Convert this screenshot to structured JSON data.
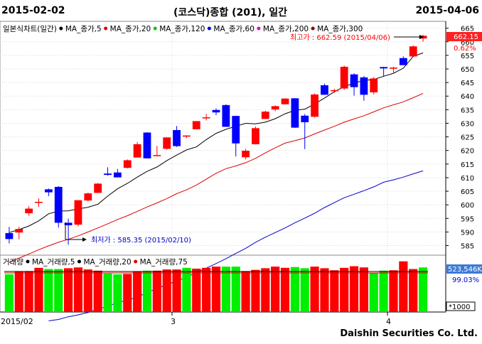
{
  "header": {
    "start_date": "2015-02-02",
    "title": "(코스닥)종합 (201), 일간",
    "end_date": "2015-04-06"
  },
  "price_panel": {
    "legend": [
      {
        "label": "일본식차트(일간)",
        "color": "#000000"
      },
      {
        "label": "MA_종가,5",
        "color": "#000000"
      },
      {
        "label": "MA_종가,20",
        "color": "#dd0000"
      },
      {
        "label": "MA_종가,120",
        "color": "#00cc00"
      },
      {
        "label": "MA_종가,60",
        "color": "#0000cc"
      },
      {
        "label": "MA_종가,200",
        "color": "#dd00dd"
      },
      {
        "label": "MA_종가,300",
        "color": "#8b0000"
      }
    ],
    "high_label": "최고가 : 662.59 (2015/04/06)",
    "low_label": "최저가 : 585.35 (2015/02/10)",
    "last_price": "662.15",
    "change_pct": "0.62%",
    "yticks": [
      "665",
      "660",
      "655",
      "650",
      "645",
      "640",
      "635",
      "630",
      "625",
      "620",
      "615",
      "610",
      "605",
      "600",
      "595",
      "590",
      "585"
    ]
  },
  "volume_panel": {
    "legend": [
      {
        "label": "거래량",
        "color": "#000000"
      },
      {
        "label": "MA_거래량,5",
        "color": "#000000"
      },
      {
        "label": "MA_거래량,20",
        "color": "#000000"
      },
      {
        "label": "MA_거래량,75",
        "color": "#dd0000"
      }
    ],
    "last_volume": "523,546K",
    "ratio": "99.03%",
    "unit": "*1000"
  },
  "xaxis": {
    "labels": [
      "2015/02",
      "3",
      "4"
    ]
  },
  "footer": {
    "brand": "Daishin Securities Co. Ltd."
  },
  "colors": {
    "up": "#ff0000",
    "down": "#0000ff",
    "volume_up": "#ff0000",
    "volume_down": "#00ee00"
  },
  "chart_data": {
    "type": "candlestick",
    "ylim": [
      582,
      667
    ],
    "candles": [
      {
        "o": 589.6,
        "h": 591.9,
        "l": 585.8,
        "c": 587.4
      },
      {
        "o": 589.8,
        "h": 591.9,
        "l": 587.3,
        "c": 591.1
      },
      {
        "o": 596.9,
        "h": 599.5,
        "l": 596.0,
        "c": 598.6
      },
      {
        "o": 600.7,
        "h": 602.4,
        "l": 599.2,
        "c": 601.1
      },
      {
        "o": 605.7,
        "h": 606.0,
        "l": 603.2,
        "c": 604.6
      },
      {
        "o": 606.6,
        "h": 606.9,
        "l": 591.6,
        "c": 593.4
      },
      {
        "o": 593.4,
        "h": 594.9,
        "l": 585.3,
        "c": 592.5
      },
      {
        "o": 592.7,
        "h": 601.7,
        "l": 592.1,
        "c": 601.7
      },
      {
        "o": 601.6,
        "h": 604.5,
        "l": 601.3,
        "c": 604.2
      },
      {
        "o": 604.4,
        "h": 608.0,
        "l": 604.4,
        "c": 607.8
      },
      {
        "o": 611.5,
        "h": 613.8,
        "l": 610.7,
        "c": 611.0
      },
      {
        "o": 611.9,
        "h": 613.2,
        "l": 610.3,
        "c": 610.1
      },
      {
        "o": 613.6,
        "h": 616.7,
        "l": 613.4,
        "c": 616.4
      },
      {
        "o": 617.4,
        "h": 623.1,
        "l": 617.4,
        "c": 622.3
      },
      {
        "o": 626.6,
        "h": 626.7,
        "l": 617.1,
        "c": 617.1
      },
      {
        "o": 618.1,
        "h": 621.7,
        "l": 618.0,
        "c": 618.3
      },
      {
        "o": 620.6,
        "h": 624.8,
        "l": 620.3,
        "c": 624.8
      },
      {
        "o": 627.5,
        "h": 629.0,
        "l": 621.3,
        "c": 621.6
      },
      {
        "o": 625.2,
        "h": 625.6,
        "l": 624.5,
        "c": 625.5
      },
      {
        "o": 627.8,
        "h": 630.8,
        "l": 627.8,
        "c": 630.8
      },
      {
        "o": 632.1,
        "h": 633.4,
        "l": 631.1,
        "c": 632.2
      },
      {
        "o": 634.9,
        "h": 635.5,
        "l": 633.0,
        "c": 634.0
      },
      {
        "o": 636.7,
        "h": 637.0,
        "l": 628.7,
        "c": 628.7
      },
      {
        "o": 632.7,
        "h": 632.8,
        "l": 617.8,
        "c": 622.6
      },
      {
        "o": 617.5,
        "h": 620.6,
        "l": 616.7,
        "c": 619.9
      },
      {
        "o": 622.3,
        "h": 628.8,
        "l": 622.2,
        "c": 628.2
      },
      {
        "o": 631.6,
        "h": 634.6,
        "l": 631.6,
        "c": 634.3
      },
      {
        "o": 635.1,
        "h": 636.6,
        "l": 634.4,
        "c": 636.3
      },
      {
        "o": 637.0,
        "h": 639.2,
        "l": 636.9,
        "c": 639.1
      },
      {
        "o": 639.2,
        "h": 639.2,
        "l": 628.3,
        "c": 628.4
      },
      {
        "o": 632.8,
        "h": 633.4,
        "l": 620.5,
        "c": 630.4
      },
      {
        "o": 632.4,
        "h": 641.0,
        "l": 632.1,
        "c": 640.6
      },
      {
        "o": 644.0,
        "h": 644.6,
        "l": 640.5,
        "c": 640.5
      },
      {
        "o": 641.8,
        "h": 642.7,
        "l": 641.2,
        "c": 642.2
      },
      {
        "o": 642.8,
        "h": 651.2,
        "l": 642.3,
        "c": 650.8
      },
      {
        "o": 648.0,
        "h": 648.4,
        "l": 640.2,
        "c": 643.3
      },
      {
        "o": 646.9,
        "h": 647.4,
        "l": 638.3,
        "c": 640.5
      },
      {
        "o": 641.4,
        "h": 647.0,
        "l": 640.6,
        "c": 646.5
      },
      {
        "o": 650.7,
        "h": 650.8,
        "l": 647.2,
        "c": 650.2
      },
      {
        "o": 650.1,
        "h": 650.8,
        "l": 648.3,
        "c": 650.5
      },
      {
        "o": 654.0,
        "h": 654.6,
        "l": 651.4,
        "c": 651.4
      },
      {
        "o": 654.6,
        "h": 658.7,
        "l": 654.6,
        "c": 658.3
      },
      {
        "o": 661.2,
        "h": 662.6,
        "l": 660.0,
        "c": 662.2
      }
    ],
    "ma5": [
      589.8,
      590.9,
      592.2,
      594.1,
      596.7,
      597.7,
      597.8,
      598.5,
      599.1,
      600.2,
      603.2,
      605.9,
      607.9,
      610.2,
      612.3,
      613.9,
      616.3,
      618.3,
      620.2,
      621.3,
      624.0,
      626.3,
      627.8,
      628.9,
      630.0,
      629.8,
      630.4,
      631.7,
      633.5,
      634.8,
      635.2,
      637.1,
      639.3,
      641.6,
      643.5,
      644.8,
      645.8,
      646.1,
      647.3,
      648.4,
      650.3,
      654.6,
      655.9
    ],
    "ma20": [
      578.8,
      580.4,
      581.9,
      583.5,
      584.9,
      586.2,
      587.3,
      588.6,
      590.0,
      591.5,
      593.0,
      594.6,
      596.0,
      597.6,
      599.2,
      600.7,
      602.3,
      604.1,
      605.5,
      607.3,
      609.4,
      611.6,
      613.3,
      614.3,
      615.5,
      617.1,
      619.1,
      621.0,
      622.7,
      623.6,
      624.6,
      626.1,
      627.5,
      628.9,
      630.4,
      631.6,
      632.8,
      634.2,
      635.7,
      636.8,
      637.9,
      639.4,
      641.0
    ],
    "ma60": [
      557.3,
      557.8,
      558.8,
      559.5,
      560.4,
      561.6,
      562.7,
      564.0,
      564.9,
      566.1,
      567.7,
      569.2,
      570.7,
      571.9,
      573.4,
      575.1,
      576.7,
      578.4,
      580.2,
      582.1,
      584.0,
      586.2,
      588.1,
      589.8,
      591.5,
      593.4,
      595.1,
      596.9,
      599.0,
      600.8,
      602.6,
      603.9,
      605.2,
      606.6,
      608.3,
      609.2,
      610.2,
      611.4,
      612.5
    ]
  },
  "volume_data": {
    "ylim": [
      0,
      1.35
    ],
    "ma_level": 1.0,
    "bars": [
      {
        "v": 0.93,
        "d": "down"
      },
      {
        "v": 1.0,
        "d": "up"
      },
      {
        "v": 1.01,
        "d": "up"
      },
      {
        "v": 1.09,
        "d": "up"
      },
      {
        "v": 1.06,
        "d": "down"
      },
      {
        "v": 1.06,
        "d": "down"
      },
      {
        "v": 1.08,
        "d": "up"
      },
      {
        "v": 1.1,
        "d": "up"
      },
      {
        "v": 1.05,
        "d": "up"
      },
      {
        "v": 1.02,
        "d": "up"
      },
      {
        "v": 0.95,
        "d": "down"
      },
      {
        "v": 0.93,
        "d": "down"
      },
      {
        "v": 0.94,
        "d": "up"
      },
      {
        "v": 1.0,
        "d": "up"
      },
      {
        "v": 1.02,
        "d": "down"
      },
      {
        "v": 1.02,
        "d": "up"
      },
      {
        "v": 1.05,
        "d": "up"
      },
      {
        "v": 1.05,
        "d": "up"
      },
      {
        "v": 1.09,
        "d": "down"
      },
      {
        "v": 1.07,
        "d": "up"
      },
      {
        "v": 1.09,
        "d": "up"
      },
      {
        "v": 1.12,
        "d": "up"
      },
      {
        "v": 1.12,
        "d": "down"
      },
      {
        "v": 1.12,
        "d": "down"
      },
      {
        "v": 1.01,
        "d": "up"
      },
      {
        "v": 1.04,
        "d": "up"
      },
      {
        "v": 1.08,
        "d": "up"
      },
      {
        "v": 1.12,
        "d": "up"
      },
      {
        "v": 1.09,
        "d": "up"
      },
      {
        "v": 1.11,
        "d": "down"
      },
      {
        "v": 1.08,
        "d": "down"
      },
      {
        "v": 1.12,
        "d": "up"
      },
      {
        "v": 1.08,
        "d": "up"
      },
      {
        "v": 1.03,
        "d": "up"
      },
      {
        "v": 1.09,
        "d": "up"
      },
      {
        "v": 1.13,
        "d": "up"
      },
      {
        "v": 1.1,
        "d": "up"
      },
      {
        "v": 0.96,
        "d": "down"
      },
      {
        "v": 1.02,
        "d": "down"
      },
      {
        "v": 1.03,
        "d": "up"
      },
      {
        "v": 1.25,
        "d": "up"
      },
      {
        "v": 1.06,
        "d": "up"
      },
      {
        "v": 1.1,
        "d": "down"
      }
    ]
  }
}
